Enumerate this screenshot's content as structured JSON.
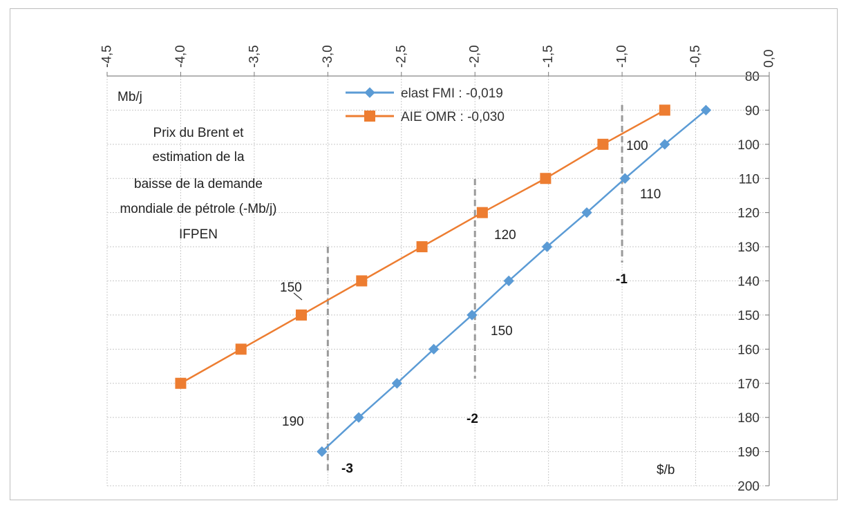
{
  "chart_data": {
    "type": "line",
    "title_lines": [
      "Prix du Brent et",
      "estimation de la",
      "baisse de la demande",
      "mondiale de pétrole (-Mb/j)",
      "IFPEN"
    ],
    "xlabel": "Mb/j",
    "ylabel": "$/b",
    "x_axis_position": "top",
    "y_axis_position": "right",
    "xlim": [
      -4.5,
      0.0
    ],
    "ylim": [
      200,
      80
    ],
    "y_inverted": true,
    "x_ticks": [
      "-4,5",
      "-4,0",
      "-3,5",
      "-3,0",
      "-2,5",
      "-2,0",
      "-1,5",
      "-1,0",
      "-0,5",
      "0,0"
    ],
    "y_ticks": [
      "80",
      "90",
      "100",
      "110",
      "120",
      "130",
      "140",
      "150",
      "160",
      "170",
      "180",
      "190",
      "200"
    ],
    "grid": true,
    "legend_placement": "top-center",
    "series": [
      {
        "name": "elast FMI : -0,019",
        "color": "#5b9bd5",
        "marker": "diamond",
        "x": [
          -0.43,
          -0.71,
          -0.98,
          -1.24,
          -1.51,
          -1.77,
          -2.02,
          -2.28,
          -2.53,
          -2.79,
          -3.04
        ],
        "y": [
          90,
          100,
          110,
          120,
          130,
          140,
          150,
          160,
          170,
          180,
          190
        ]
      },
      {
        "name": "AIE OMR : -0,030",
        "color": "#ed7d31",
        "marker": "square",
        "x": [
          -0.71,
          -1.13,
          -1.52,
          -1.95,
          -2.36,
          -2.77,
          -3.18,
          -3.59,
          -4.0
        ],
        "y": [
          90,
          100,
          110,
          120,
          130,
          140,
          150,
          160,
          170
        ]
      }
    ],
    "annotations": [
      {
        "text": "100",
        "bold": false
      },
      {
        "text": "110",
        "bold": false
      },
      {
        "text": "120",
        "bold": false
      },
      {
        "text": "150",
        "bold": false
      },
      {
        "text": "150",
        "bold": false
      },
      {
        "text": "190",
        "bold": false
      },
      {
        "text": "-1",
        "bold": true
      },
      {
        "text": "-2",
        "bold": true
      },
      {
        "text": "-3",
        "bold": true
      }
    ],
    "reference_lines_x": [
      -1.0,
      -2.0,
      -3.0
    ]
  }
}
